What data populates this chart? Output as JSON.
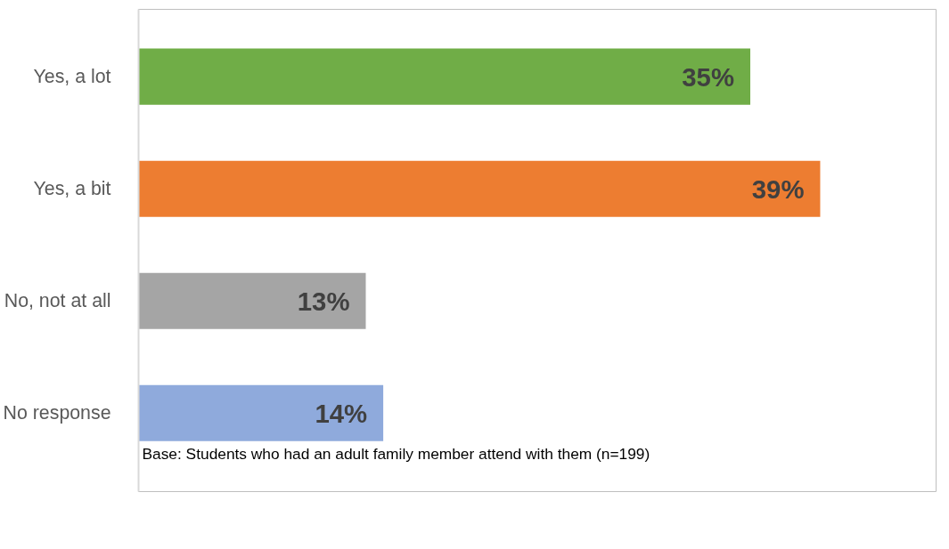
{
  "chart_data": {
    "type": "bar",
    "orientation": "horizontal",
    "categories": [
      "Yes, a lot",
      "Yes, a bit",
      "No, not at all",
      "No response"
    ],
    "values": [
      35,
      39,
      13,
      14
    ],
    "colors": [
      "#70ad47",
      "#ed7d31",
      "#a5a5a5",
      "#8faadc"
    ],
    "value_labels": [
      "35%",
      "39%",
      "13%",
      "14%"
    ],
    "grid": false,
    "annotations": [
      "Base: Students who had an adult family member attend with them (n=199)"
    ]
  }
}
